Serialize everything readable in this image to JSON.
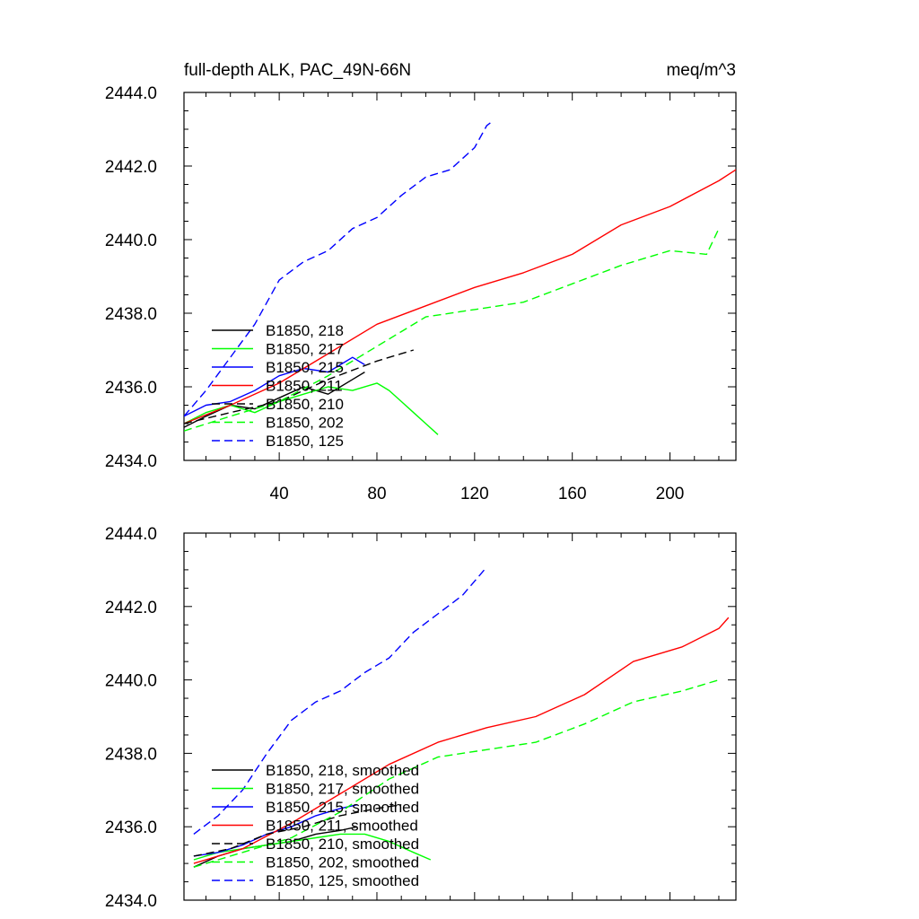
{
  "figure": {
    "title_left": "full-depth ALK, PAC_49N-66N",
    "title_right": "meq/m^3"
  },
  "chart_data": [
    {
      "type": "line",
      "panel": "raw",
      "title": "full-depth ALK, PAC_49N-66N",
      "units": "meq/m^3",
      "xlim": [
        1,
        227
      ],
      "ylim": [
        2434.0,
        2444.0
      ],
      "xticks": [
        40,
        80,
        120,
        160,
        200
      ],
      "xtick_labels": [
        "40",
        "80",
        "120",
        "160",
        "200"
      ],
      "yticks": [
        2434.0,
        2436.0,
        2438.0,
        2440.0,
        2442.0,
        2444.0
      ],
      "ytick_labels": [
        "2434.0",
        "2436.0",
        "2438.0",
        "2440.0",
        "2442.0",
        "2444.0"
      ],
      "grid": false,
      "legend_position": "bottom-left",
      "series": [
        {
          "name": "B1850, 218",
          "color": "#000000",
          "dash": "solid",
          "x": [
            1,
            10,
            20,
            30,
            40,
            50,
            60,
            70,
            75
          ],
          "y": [
            2434.9,
            2435.2,
            2435.5,
            2435.4,
            2435.7,
            2436.0,
            2435.8,
            2436.2,
            2436.4
          ]
        },
        {
          "name": "B1850, 217",
          "color": "#00ff00",
          "dash": "solid",
          "x": [
            1,
            10,
            20,
            30,
            40,
            50,
            60,
            70,
            80,
            85,
            90,
            95,
            100,
            105
          ],
          "y": [
            2435.0,
            2435.3,
            2435.5,
            2435.3,
            2435.6,
            2435.8,
            2436.0,
            2435.9,
            2436.1,
            2435.9,
            2435.6,
            2435.3,
            2435.0,
            2434.7
          ]
        },
        {
          "name": "B1850, 215",
          "color": "#0000ff",
          "dash": "solid",
          "x": [
            1,
            10,
            20,
            30,
            40,
            50,
            60,
            70,
            75
          ],
          "y": [
            2435.2,
            2435.5,
            2435.6,
            2435.9,
            2436.3,
            2436.5,
            2436.4,
            2436.8,
            2436.6
          ]
        },
        {
          "name": "B1850, 211",
          "color": "#ff0000",
          "dash": "solid",
          "x": [
            1,
            20,
            40,
            60,
            80,
            100,
            120,
            140,
            160,
            180,
            200,
            220,
            227
          ],
          "y": [
            2435.0,
            2435.5,
            2436.1,
            2436.9,
            2437.7,
            2438.2,
            2438.7,
            2439.1,
            2439.6,
            2440.4,
            2440.9,
            2441.6,
            2441.9
          ]
        },
        {
          "name": "B1850, 210",
          "color": "#000000",
          "dash": "dash",
          "x": [
            1,
            20,
            40,
            60,
            80,
            90,
            95
          ],
          "y": [
            2435.0,
            2435.3,
            2435.6,
            2436.2,
            2436.7,
            2436.9,
            2437.0
          ]
        },
        {
          "name": "B1850, 202",
          "color": "#00ff00",
          "dash": "dash",
          "x": [
            1,
            20,
            40,
            60,
            80,
            100,
            120,
            140,
            160,
            180,
            200,
            215,
            220
          ],
          "y": [
            2434.8,
            2435.2,
            2435.6,
            2436.3,
            2437.1,
            2437.9,
            2438.1,
            2438.3,
            2438.8,
            2439.3,
            2439.7,
            2439.6,
            2440.3
          ]
        },
        {
          "name": "B1850, 125",
          "color": "#0000ff",
          "dash": "dash",
          "x": [
            1,
            10,
            20,
            30,
            40,
            50,
            60,
            70,
            80,
            90,
            100,
            110,
            120,
            125,
            127
          ],
          "y": [
            2435.2,
            2435.9,
            2436.8,
            2437.7,
            2438.9,
            2439.4,
            2439.7,
            2440.3,
            2440.6,
            2441.2,
            2441.7,
            2441.9,
            2442.5,
            2443.1,
            2443.2
          ]
        }
      ]
    },
    {
      "type": "line",
      "panel": "smoothed",
      "xlim": [
        1,
        227
      ],
      "ylim": [
        2434.0,
        2444.0
      ],
      "yticks": [
        2434.0,
        2436.0,
        2438.0,
        2440.0,
        2442.0,
        2444.0
      ],
      "ytick_labels": [
        "2434.0",
        "2436.0",
        "2438.0",
        "2440.0",
        "2442.0",
        "2444.0"
      ],
      "grid": false,
      "legend_position": "bottom-left",
      "series": [
        {
          "name": "B1850, 218, smoothed",
          "color": "#000000",
          "dash": "solid",
          "x": [
            5,
            15,
            25,
            35,
            45,
            55,
            65,
            72
          ],
          "y": [
            2434.9,
            2435.2,
            2435.4,
            2435.5,
            2435.6,
            2435.8,
            2435.9,
            2436.0
          ]
        },
        {
          "name": "B1850, 217, smoothed",
          "color": "#00ff00",
          "dash": "solid",
          "x": [
            5,
            15,
            25,
            35,
            45,
            55,
            65,
            75,
            85,
            95,
            102
          ],
          "y": [
            2435.1,
            2435.3,
            2435.4,
            2435.5,
            2435.6,
            2435.7,
            2435.8,
            2435.8,
            2435.6,
            2435.3,
            2435.1
          ]
        },
        {
          "name": "B1850, 215, smoothed",
          "color": "#0000ff",
          "dash": "solid",
          "x": [
            5,
            15,
            25,
            35,
            45,
            55,
            65,
            72
          ],
          "y": [
            2435.2,
            2435.3,
            2435.5,
            2435.8,
            2436.0,
            2436.3,
            2436.5,
            2436.6
          ]
        },
        {
          "name": "B1850, 211, smoothed",
          "color": "#ff0000",
          "dash": "solid",
          "x": [
            5,
            25,
            45,
            65,
            85,
            105,
            125,
            145,
            165,
            185,
            205,
            220,
            224
          ],
          "y": [
            2435.0,
            2435.4,
            2436.1,
            2436.9,
            2437.7,
            2438.3,
            2438.7,
            2439.0,
            2439.6,
            2440.5,
            2440.9,
            2441.4,
            2441.7
          ]
        },
        {
          "name": "B1850, 210, smoothed",
          "color": "#000000",
          "dash": "dash",
          "x": [
            5,
            20,
            35,
            50,
            65,
            80,
            90
          ],
          "y": [
            2435.2,
            2435.4,
            2435.8,
            2436.0,
            2436.3,
            2436.5,
            2436.6
          ]
        },
        {
          "name": "B1850, 202, smoothed",
          "color": "#00ff00",
          "dash": "dash",
          "x": [
            5,
            25,
            45,
            65,
            85,
            105,
            125,
            145,
            165,
            185,
            205,
            220
          ],
          "y": [
            2434.9,
            2435.3,
            2435.7,
            2436.4,
            2437.3,
            2437.9,
            2438.1,
            2438.3,
            2438.8,
            2439.4,
            2439.7,
            2440.0
          ]
        },
        {
          "name": "B1850, 125, smoothed",
          "color": "#0000ff",
          "dash": "dash",
          "x": [
            5,
            15,
            25,
            35,
            45,
            55,
            65,
            75,
            85,
            95,
            105,
            115,
            124
          ],
          "y": [
            2435.8,
            2436.3,
            2437.0,
            2438.0,
            2438.9,
            2439.4,
            2439.7,
            2440.2,
            2440.6,
            2441.3,
            2441.8,
            2442.3,
            2443.0
          ]
        }
      ]
    }
  ]
}
